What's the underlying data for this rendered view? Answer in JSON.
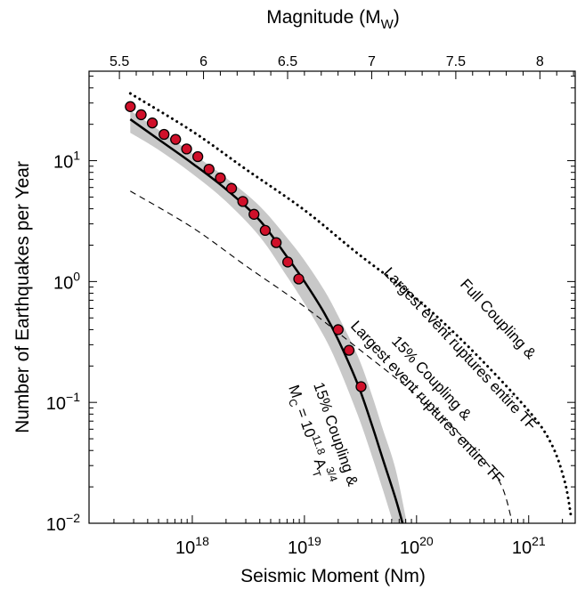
{
  "chart_data": {
    "type": "scatter",
    "x_scale": "log",
    "y_scale": "log",
    "xlim": [
      1.2e+17,
      2.6e+21
    ],
    "ylim": [
      0.01,
      55
    ],
    "xlabel": "Seismic Moment (Nm)",
    "ylabel": "Number of Earthquakes per Year",
    "top_xlabel": "Magnitude (M",
    "top_xlabel_sub": "W",
    "top_xlabel_close": ")",
    "x_ticks": [
      {
        "value": 1e+18,
        "base": "10",
        "exp": "18"
      },
      {
        "value": 1e+19,
        "base": "10",
        "exp": "19"
      },
      {
        "value": 1e+20,
        "base": "10",
        "exp": "20"
      },
      {
        "value": 1e+21,
        "base": "10",
        "exp": "21"
      }
    ],
    "y_ticks": [
      {
        "value": 0.01,
        "base": "10",
        "exp": "−2"
      },
      {
        "value": 0.1,
        "base": "10",
        "exp": "−1"
      },
      {
        "value": 1,
        "base": "10",
        "exp": "0"
      },
      {
        "value": 10,
        "base": "10",
        "exp": "1"
      }
    ],
    "top_ticks": [
      {
        "value": 5.5,
        "label": "5.5"
      },
      {
        "value": 6,
        "label": "6"
      },
      {
        "value": 6.5,
        "label": "6.5"
      },
      {
        "value": 7,
        "label": "7"
      },
      {
        "value": 7.5,
        "label": "7.5"
      },
      {
        "value": 8,
        "label": "8"
      }
    ],
    "grid": false,
    "observed": {
      "marker_color": "#d0102a",
      "points": [
        {
          "x": 2.8e+17,
          "y": 28
        },
        {
          "x": 3.5e+17,
          "y": 24
        },
        {
          "x": 4.4e+17,
          "y": 20.5
        },
        {
          "x": 5.6e+17,
          "y": 16.5
        },
        {
          "x": 7.1e+17,
          "y": 15
        },
        {
          "x": 8.9e+17,
          "y": 12.5
        },
        {
          "x": 1.12e+18,
          "y": 10.8
        },
        {
          "x": 1.41e+18,
          "y": 8.5
        },
        {
          "x": 1.78e+18,
          "y": 7.2
        },
        {
          "x": 2.24e+18,
          "y": 5.9
        },
        {
          "x": 2.82e+18,
          "y": 4.6
        },
        {
          "x": 3.55e+18,
          "y": 3.6
        },
        {
          "x": 4.47e+18,
          "y": 2.65
        },
        {
          "x": 5.6e+18,
          "y": 2.1
        },
        {
          "x": 7.1e+18,
          "y": 1.45
        },
        {
          "x": 8.9e+18,
          "y": 1.05
        },
        {
          "x": 2e+19,
          "y": 0.4
        },
        {
          "x": 2.5e+19,
          "y": 0.27
        },
        {
          "x": 3.2e+19,
          "y": 0.135
        }
      ]
    },
    "model_curves": [
      {
        "id": "full-coupling",
        "style": "dotted",
        "points": [
          {
            "x": 2.8e+17,
            "y": 36
          },
          {
            "x": 1e+18,
            "y": 17.5
          },
          {
            "x": 3e+18,
            "y": 8.5
          },
          {
            "x": 1e+19,
            "y": 3.9
          },
          {
            "x": 3e+19,
            "y": 1.7
          },
          {
            "x": 1e+20,
            "y": 0.72
          },
          {
            "x": 3e+20,
            "y": 0.28
          },
          {
            "x": 1e+21,
            "y": 0.085
          },
          {
            "x": 1.6e+21,
            "y": 0.045
          },
          {
            "x": 2.1e+21,
            "y": 0.022
          },
          {
            "x": 2.4e+21,
            "y": 0.011
          }
        ]
      },
      {
        "id": "fifteen-percent-entire-tf",
        "style": "dashed",
        "points": [
          {
            "x": 2.8e+17,
            "y": 5.6
          },
          {
            "x": 1e+18,
            "y": 2.8
          },
          {
            "x": 3e+18,
            "y": 1.35
          },
          {
            "x": 1e+19,
            "y": 0.62
          },
          {
            "x": 3e+19,
            "y": 0.28
          },
          {
            "x": 1e+20,
            "y": 0.115
          },
          {
            "x": 3e+20,
            "y": 0.045
          },
          {
            "x": 5.5e+20,
            "y": 0.022
          },
          {
            "x": 7e+20,
            "y": 0.011
          }
        ]
      },
      {
        "id": "fifteen-percent-mc",
        "style": "solid",
        "points": [
          {
            "x": 2.8e+17,
            "y": 22
          },
          {
            "x": 5e+17,
            "y": 15
          },
          {
            "x": 1e+18,
            "y": 9.5
          },
          {
            "x": 2e+18,
            "y": 5.8
          },
          {
            "x": 4e+18,
            "y": 3.2
          },
          {
            "x": 7e+18,
            "y": 1.6
          },
          {
            "x": 1e+19,
            "y": 1.0
          },
          {
            "x": 1.5e+19,
            "y": 0.55
          },
          {
            "x": 2e+19,
            "y": 0.33
          },
          {
            "x": 3e+19,
            "y": 0.14
          },
          {
            "x": 4e+19,
            "y": 0.065
          },
          {
            "x": 5e+19,
            "y": 0.034
          },
          {
            "x": 6.5e+19,
            "y": 0.016
          },
          {
            "x": 7.5e+19,
            "y": 0.01
          }
        ]
      }
    ],
    "uncertainty_band": {
      "upper": [
        {
          "x": 2.8e+17,
          "y": 26
        },
        {
          "x": 5e+17,
          "y": 18
        },
        {
          "x": 1e+18,
          "y": 11.5
        },
        {
          "x": 2e+18,
          "y": 7.2
        },
        {
          "x": 4e+18,
          "y": 4.2
        },
        {
          "x": 7e+18,
          "y": 2.3
        },
        {
          "x": 1e+19,
          "y": 1.5
        },
        {
          "x": 1.5e+19,
          "y": 0.85
        },
        {
          "x": 2e+19,
          "y": 0.52
        },
        {
          "x": 3e+19,
          "y": 0.24
        },
        {
          "x": 4e+19,
          "y": 0.115
        },
        {
          "x": 5e+19,
          "y": 0.06
        },
        {
          "x": 6.5e+19,
          "y": 0.028
        },
        {
          "x": 8.2e+19,
          "y": 0.01
        }
      ],
      "lower": [
        {
          "x": 2.8e+17,
          "y": 17
        },
        {
          "x": 5e+17,
          "y": 12.3
        },
        {
          "x": 1e+18,
          "y": 7.8
        },
        {
          "x": 2e+18,
          "y": 4.6
        },
        {
          "x": 4e+18,
          "y": 2.35
        },
        {
          "x": 7e+18,
          "y": 1.1
        },
        {
          "x": 1e+19,
          "y": 0.66
        },
        {
          "x": 1.5e+19,
          "y": 0.35
        },
        {
          "x": 2e+19,
          "y": 0.2
        },
        {
          "x": 3e+19,
          "y": 0.078
        },
        {
          "x": 4e+19,
          "y": 0.036
        },
        {
          "x": 5e+19,
          "y": 0.019
        },
        {
          "x": 6.2e+19,
          "y": 0.01
        }
      ]
    },
    "annotations": [
      {
        "id": "full-coupling-label",
        "lines": [
          "Full Coupling &",
          "Largest event ruptures entire TF"
        ]
      },
      {
        "id": "fifteen-entire-label",
        "lines": [
          "15% Coupling &",
          "Largest event ruptures entire TF"
        ]
      },
      {
        "id": "fifteen-mc-label",
        "line1": "15% Coupling &",
        "line2_pre": "M",
        "line2_sub": "C",
        "line2_mid": " = 10",
        "line2_sup": "11.8",
        "line2_a": " A",
        "line2_a_sub": "T",
        "line2_a_sup": "3/4"
      }
    ]
  }
}
